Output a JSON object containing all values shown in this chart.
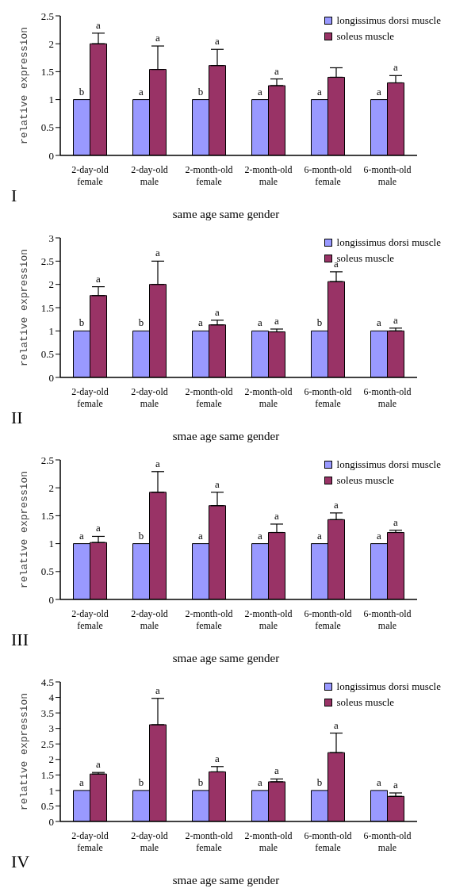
{
  "chart_data": [
    {
      "type": "bar",
      "ylabel": "relative expression",
      "xlabel": "same age same gender",
      "categories": [
        "2-day-old female",
        "2-day-old male",
        "2-month-old female",
        "2-month-old male",
        "6-month-old female",
        "6-month-old male"
      ],
      "ylim": [
        0,
        2.5
      ],
      "yticks": [
        0,
        0.5,
        1,
        1.5,
        2,
        2.5
      ],
      "legend": "top right",
      "grid": false,
      "series": [
        {
          "name": "longissimus dorsi muscle",
          "color": "#9999ff",
          "values": [
            1,
            1,
            1,
            1,
            1,
            1
          ]
        },
        {
          "name": "soleus muscle",
          "color": "#993366",
          "values": [
            2.0,
            1.54,
            1.61,
            1.25,
            1.4,
            1.3
          ],
          "errors": [
            [
              2.0,
              2.19
            ],
            [
              1.54,
              1.96
            ],
            [
              1.61,
              1.9
            ],
            [
              1.25,
              1.37
            ],
            [
              1.4,
              1.57
            ],
            [
              1.3,
              1.43
            ]
          ]
        }
      ],
      "annotations": [
        "I",
        {
          "text": "b",
          "x": "2-day-old female",
          "y": 1
        },
        {
          "text": "a",
          "x": "2-day-old male",
          "y": 1
        },
        {
          "text": "b",
          "x": "2-month-old female",
          "y": 1
        },
        {
          "text": "a",
          "x": "2-month-old male",
          "y": 1
        },
        {
          "text": "a",
          "x": "6-month-old female",
          "y": 1
        },
        {
          "text": "a",
          "x": "6-month-old male",
          "y": 1
        },
        {
          "text": "a",
          "x": "2-day-old female",
          "y": 2.19
        },
        {
          "text": "a",
          "x": "2-day-old male",
          "y": 1.96
        },
        {
          "text": "a",
          "x": "2-month-old female",
          "y": 1.9
        },
        {
          "text": "a",
          "x": "2-month-old male",
          "y": 1.37
        },
        {
          "text": "a",
          "x": "6-month-old male",
          "y": 1.43
        }
      ]
    },
    {
      "type": "bar",
      "ylabel": "relative expression",
      "xlabel": "smae age same gender",
      "categories": [
        "2-day-old female",
        "2-day-old male",
        "2-month-old female",
        "2-month-old male",
        "6-month-old female",
        "6-month-old male"
      ],
      "ylim": [
        0,
        3
      ],
      "yticks": [
        0,
        0.5,
        1,
        1.5,
        2,
        2.5,
        3
      ],
      "legend": "top right",
      "grid": false,
      "series": [
        {
          "name": "longissimus dorsi muscle",
          "color": "#9999ff",
          "values": [
            1,
            1,
            1,
            1,
            1,
            1
          ]
        },
        {
          "name": "soleus muscle",
          "color": "#993366",
          "values": [
            1.76,
            2.0,
            1.13,
            0.98,
            2.06,
            1.0
          ],
          "errors": [
            [
              1.76,
              1.95
            ],
            [
              2.0,
              2.5
            ],
            [
              1.13,
              1.23
            ],
            [
              0.98,
              1.04
            ],
            [
              2.06,
              2.27
            ],
            [
              1.0,
              1.06
            ]
          ]
        }
      ],
      "annotations": [
        "II",
        {
          "text": "b",
          "x": "2-day-old female",
          "y": 1
        },
        {
          "text": "b",
          "x": "2-day-old male",
          "y": 1
        },
        {
          "text": "a",
          "x": "2-month-old female",
          "y": 1
        },
        {
          "text": "a",
          "x": "2-month-old male",
          "y": 1
        },
        {
          "text": "b",
          "x": "6-month-old female",
          "y": 1
        },
        {
          "text": "a",
          "x": "6-month-old male",
          "y": 1
        },
        {
          "text": "a",
          "x": "2-day-old female",
          "y": 1.95
        },
        {
          "text": "a",
          "x": "2-day-old male",
          "y": 2.5
        },
        {
          "text": "a",
          "x": "2-month-old female",
          "y": 1.23
        },
        {
          "text": "a",
          "x": "2-month-old male",
          "y": 1.04
        },
        {
          "text": "a",
          "x": "6-month-old female",
          "y": 2.27
        },
        {
          "text": "a",
          "x": "6-month-old male",
          "y": 1.06
        }
      ]
    },
    {
      "type": "bar",
      "ylabel": "relative expression",
      "xlabel": "smae age same gender",
      "categories": [
        "2-day-old female",
        "2-day-old male",
        "2-month-old female",
        "2-month-old male",
        "6-month-old female",
        "6-month-old male"
      ],
      "ylim": [
        0,
        2.5
      ],
      "yticks": [
        0,
        0.5,
        1,
        1.5,
        2,
        2.5
      ],
      "legend": "top right",
      "grid": false,
      "series": [
        {
          "name": "longissimus dorsi muscle",
          "color": "#9999ff",
          "values": [
            1,
            1,
            1,
            1,
            1,
            1
          ]
        },
        {
          "name": "soleus muscle",
          "color": "#993366",
          "values": [
            1.02,
            1.92,
            1.68,
            1.2,
            1.43,
            1.2
          ],
          "errors": [
            [
              1.02,
              1.13
            ],
            [
              1.92,
              2.29
            ],
            [
              1.68,
              1.92
            ],
            [
              1.2,
              1.35
            ],
            [
              1.43,
              1.55
            ],
            [
              1.2,
              1.24
            ]
          ]
        }
      ],
      "annotations": [
        "III",
        {
          "text": "a",
          "x": "2-day-old female",
          "y": 1
        },
        {
          "text": "b",
          "x": "2-day-old male",
          "y": 1
        },
        {
          "text": "a",
          "x": "2-month-old female",
          "y": 1
        },
        {
          "text": "a",
          "x": "2-month-old male",
          "y": 1
        },
        {
          "text": "a",
          "x": "6-month-old female",
          "y": 1
        },
        {
          "text": "a",
          "x": "6-month-old male",
          "y": 1
        },
        {
          "text": "a",
          "x": "2-day-old female",
          "y": 1.13
        },
        {
          "text": "a",
          "x": "2-day-old male",
          "y": 2.29
        },
        {
          "text": "a",
          "x": "2-month-old female",
          "y": 1.92
        },
        {
          "text": "a",
          "x": "2-month-old male",
          "y": 1.35
        },
        {
          "text": "a",
          "x": "6-month-old female",
          "y": 1.55
        },
        {
          "text": "a",
          "x": "6-month-old male",
          "y": 1.24
        }
      ]
    },
    {
      "type": "bar",
      "ylabel": "relative expression",
      "xlabel": "smae age same gender",
      "categories": [
        "2-day-old female",
        "2-day-old male",
        "2-month-old female",
        "2-month-old male",
        "6-month-old female",
        "6-month-old male"
      ],
      "ylim": [
        0,
        4.5
      ],
      "yticks": [
        0,
        0.5,
        1,
        1.5,
        2,
        2.5,
        3,
        3.5,
        4,
        4.5
      ],
      "legend": "top right",
      "grid": false,
      "series": [
        {
          "name": "longissimus dorsi muscle",
          "color": "#9999ff",
          "values": [
            1,
            1,
            1,
            1,
            1,
            1
          ]
        },
        {
          "name": "soleus muscle",
          "color": "#993366",
          "values": [
            1.53,
            3.12,
            1.6,
            1.28,
            2.22,
            0.81
          ],
          "errors": [
            [
              1.53,
              1.58
            ],
            [
              3.12,
              3.97
            ],
            [
              1.6,
              1.77
            ],
            [
              1.28,
              1.37
            ],
            [
              2.22,
              2.85
            ],
            [
              0.81,
              0.92
            ]
          ]
        }
      ],
      "annotations": [
        "IV",
        {
          "text": "a",
          "x": "2-day-old female",
          "y": 1
        },
        {
          "text": "b",
          "x": "2-day-old male",
          "y": 1
        },
        {
          "text": "b",
          "x": "2-month-old female",
          "y": 1
        },
        {
          "text": "a",
          "x": "2-month-old male",
          "y": 1
        },
        {
          "text": "b",
          "x": "6-month-old female",
          "y": 1
        },
        {
          "text": "a",
          "x": "6-month-old male",
          "y": 1
        },
        {
          "text": "a",
          "x": "2-day-old female",
          "y": 1.58
        },
        {
          "text": "a",
          "x": "2-day-old male",
          "y": 3.97
        },
        {
          "text": "a",
          "x": "2-month-old female",
          "y": 1.77
        },
        {
          "text": "a",
          "x": "2-month-old male",
          "y": 1.37
        },
        {
          "text": "a",
          "x": "6-month-old female",
          "y": 2.85
        },
        {
          "text": "a",
          "x": "6-month-old male",
          "y": 0.92
        }
      ]
    }
  ]
}
